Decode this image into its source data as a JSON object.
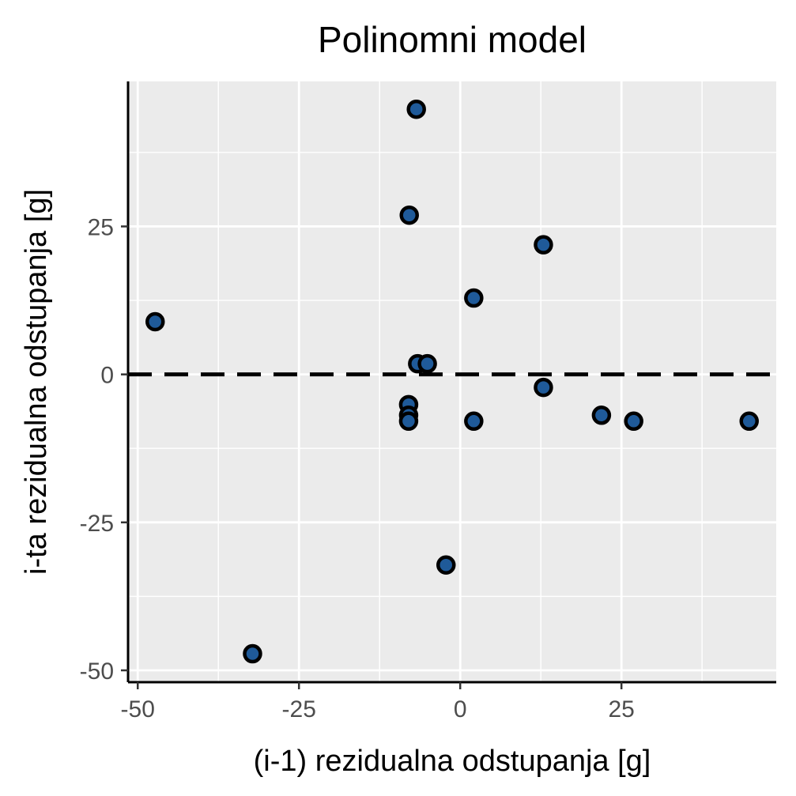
{
  "chart_data": {
    "type": "scatter",
    "title": "Polinomni model",
    "xlabel": "(i-1) rezidualna odstupanja [g]",
    "ylabel": "i-ta rezidualna odstupanja [g]",
    "xlim": [
      -51.5,
      49
    ],
    "ylim": [
      -52,
      49.5
    ],
    "x_ticks": [
      -50,
      -25,
      0,
      25
    ],
    "y_ticks": [
      -50,
      -25,
      0,
      25
    ],
    "x_tick_labels": [
      "-50",
      "-25",
      "0",
      "25"
    ],
    "y_tick_labels": [
      "-50",
      "-25",
      "0",
      "25"
    ],
    "grid": true,
    "reference_line": {
      "y": 0,
      "style": "dashed"
    },
    "point_fill": "#1f5a99",
    "point_stroke": "#000000",
    "panel_background": "#ebebeb",
    "points": [
      {
        "x": -6.8,
        "y": 44.8
      },
      {
        "x": -7.9,
        "y": 26.9
      },
      {
        "x": 12.9,
        "y": 21.9
      },
      {
        "x": 2.1,
        "y": 12.9
      },
      {
        "x": -47.3,
        "y": 8.9
      },
      {
        "x": -6.6,
        "y": 1.8
      },
      {
        "x": -5.1,
        "y": 1.8
      },
      {
        "x": 12.9,
        "y": -2.2
      },
      {
        "x": -8.0,
        "y": -5.1
      },
      {
        "x": -8.0,
        "y": -6.9
      },
      {
        "x": -8.0,
        "y": -7.9
      },
      {
        "x": 2.1,
        "y": -7.9
      },
      {
        "x": 21.9,
        "y": -6.9
      },
      {
        "x": 26.9,
        "y": -7.9
      },
      {
        "x": 44.8,
        "y": -7.9
      },
      {
        "x": -2.2,
        "y": -32.2
      },
      {
        "x": -32.2,
        "y": -47.2
      }
    ]
  }
}
